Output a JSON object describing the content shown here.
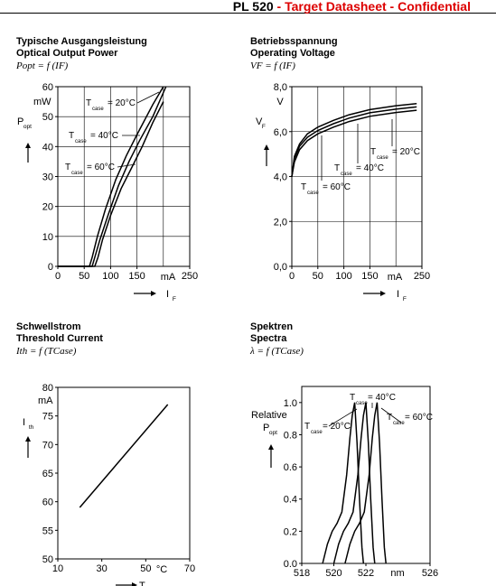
{
  "header": {
    "product": "PL 520",
    "separator": " - ",
    "subtitle": "Target Datasheet - Confidential"
  },
  "panels": [
    {
      "title_de": "Typische Ausgangsleistung",
      "title_en": "Optical Output Power",
      "formula": "Popt = f (IF)"
    },
    {
      "title_de": "Betriebsspannung",
      "title_en": "Operating Voltage",
      "formula": "VF = f (IF)"
    },
    {
      "title_de": "Schwellstrom",
      "title_en": "Threshold Current",
      "formula": "Ith = f (TCase)"
    },
    {
      "title_de": "Spektren",
      "title_en": "Spectra",
      "formula": "λ = f (TCase)"
    }
  ],
  "chart_data": [
    {
      "type": "line",
      "ylabel_main": "P",
      "ylabel_sub": "opt",
      "yunit": "mW",
      "xunit": "mA",
      "xlabel_main": "I",
      "xlabel_sub": "F",
      "xlim": [
        0,
        250
      ],
      "ylim": [
        0,
        60
      ],
      "xticks": [
        "0",
        "50",
        "100",
        "150",
        "250"
      ],
      "xtick_values": [
        0,
        50,
        100,
        150,
        250
      ],
      "yticks": [
        "0",
        "10",
        "20",
        "30",
        "40",
        "50",
        "60"
      ],
      "ytick_values": [
        0,
        10,
        20,
        30,
        40,
        50,
        60
      ],
      "series": [
        {
          "name": "T case = 20°C",
          "label_main": "T",
          "label_sub": "case",
          "label_value": "= 20°C",
          "x": [
            0,
            60,
            65,
            75,
            90,
            110,
            130,
            150,
            180,
            200
          ],
          "y": [
            0,
            0,
            3,
            10,
            19,
            29,
            37,
            44,
            54,
            60
          ]
        },
        {
          "name": "T case = 40°C",
          "label_main": "T",
          "label_sub": "case",
          "label_value": "= 40°C",
          "x": [
            0,
            65,
            70,
            80,
            95,
            115,
            135,
            155,
            180,
            205
          ],
          "y": [
            0,
            0,
            3,
            9,
            17,
            27,
            35,
            42,
            50,
            60
          ]
        },
        {
          "name": "T case = 60°C",
          "label_main": "T",
          "label_sub": "case",
          "label_value": "= 60°C",
          "x": [
            0,
            70,
            76,
            85,
            100,
            120,
            140,
            160,
            180,
            200
          ],
          "y": [
            0,
            0,
            3,
            9,
            17,
            26,
            33,
            40,
            48,
            55
          ]
        }
      ]
    },
    {
      "type": "line",
      "ylabel_main": "V",
      "ylabel_sub": "F",
      "yunit": "V",
      "xunit": "mA",
      "xlabel_main": "I",
      "xlabel_sub": "F",
      "xlim": [
        0,
        250
      ],
      "ylim": [
        0,
        8
      ],
      "xticks": [
        "0",
        "50",
        "100",
        "150",
        "250"
      ],
      "xtick_values": [
        0,
        50,
        100,
        150,
        250
      ],
      "yticks": [
        "0,0",
        "2,0",
        "4,0",
        "6,0",
        "8,0"
      ],
      "ytick_values": [
        0,
        2,
        4,
        6,
        8
      ],
      "series": [
        {
          "name": "T case = 20°C",
          "label_main": "T",
          "label_sub": "case",
          "label_value": "= 20°C",
          "x": [
            0,
            5,
            15,
            30,
            50,
            80,
            110,
            150,
            200,
            240
          ],
          "y": [
            4.0,
            4.9,
            5.45,
            5.9,
            6.2,
            6.5,
            6.75,
            6.98,
            7.15,
            7.25
          ]
        },
        {
          "name": "T case = 40°C",
          "label_main": "T",
          "label_sub": "case",
          "label_value": "= 40°C",
          "x": [
            0,
            5,
            15,
            30,
            50,
            80,
            110,
            150,
            200,
            240
          ],
          "y": [
            4.0,
            4.8,
            5.35,
            5.75,
            6.05,
            6.35,
            6.6,
            6.84,
            7.0,
            7.1
          ]
        },
        {
          "name": "T case = 60°C",
          "label_main": "T",
          "label_sub": "case",
          "label_value": "= 60°C",
          "x": [
            0,
            5,
            15,
            30,
            50,
            80,
            110,
            150,
            200,
            240
          ],
          "y": [
            4.0,
            4.65,
            5.2,
            5.6,
            5.9,
            6.2,
            6.45,
            6.68,
            6.85,
            6.95
          ]
        }
      ]
    },
    {
      "type": "line",
      "ylabel_main": "I",
      "ylabel_sub": "th",
      "yunit": "mA",
      "xunit": "°C",
      "xlabel_main": "T",
      "xlim": [
        10,
        70
      ],
      "ylim": [
        50,
        80
      ],
      "xticks": [
        "10",
        "30",
        "50",
        "70"
      ],
      "xtick_values": [
        10,
        30,
        50,
        70
      ],
      "yticks": [
        "50",
        "55",
        "60",
        "65",
        "70",
        "75",
        "80"
      ],
      "ytick_values": [
        50,
        55,
        60,
        65,
        70,
        75,
        80
      ],
      "series": [
        {
          "x": [
            20,
            60
          ],
          "y": [
            59,
            77
          ]
        }
      ]
    },
    {
      "type": "line",
      "ylabel_top": "Relative",
      "ylabel_main": "P",
      "ylabel_sub": "opt",
      "xunit": "nm",
      "xlim": [
        518,
        526
      ],
      "ylim": [
        0,
        1.1
      ],
      "xticks": [
        "518",
        "520",
        "522",
        "526"
      ],
      "xtick_values": [
        518,
        520,
        522,
        526
      ],
      "yticks": [
        "0.0",
        "0.2",
        "0.4",
        "0.6",
        "0.8",
        "1.0"
      ],
      "ytick_values": [
        0,
        0.2,
        0.4,
        0.6,
        0.8,
        1.0
      ],
      "series": [
        {
          "name": "T case = 20°C",
          "label_main": "T",
          "label_sub": "case",
          "label_value": "= 20°C",
          "x": [
            519.3,
            519.6,
            519.9,
            520.2,
            520.5,
            520.8,
            521.0,
            521.15,
            521.3,
            521.45,
            521.6,
            521.75,
            521.85
          ],
          "y": [
            0,
            0.12,
            0.2,
            0.25,
            0.32,
            0.55,
            0.78,
            0.92,
            1.0,
            0.75,
            0.4,
            0.1,
            0
          ]
        },
        {
          "name": "T case = 40°C",
          "label_main": "T",
          "label_sub": "case",
          "label_value": "= 40°C",
          "x": [
            520.0,
            520.3,
            520.6,
            520.9,
            521.2,
            521.5,
            521.7,
            521.85,
            522.0,
            522.15,
            522.3,
            522.45,
            522.55
          ],
          "y": [
            0,
            0.12,
            0.2,
            0.25,
            0.32,
            0.55,
            0.78,
            0.92,
            1.0,
            0.75,
            0.4,
            0.1,
            0
          ]
        },
        {
          "name": "T case = 60°C",
          "label_main": "T",
          "label_sub": "case",
          "label_value": "= 60°C",
          "x": [
            520.7,
            521.0,
            521.3,
            521.6,
            521.9,
            522.2,
            522.4,
            522.55,
            522.7,
            522.85,
            523.0,
            523.15,
            523.25
          ],
          "y": [
            0,
            0.12,
            0.2,
            0.25,
            0.32,
            0.55,
            0.78,
            0.92,
            1.0,
            0.75,
            0.4,
            0.1,
            0
          ]
        }
      ]
    }
  ]
}
